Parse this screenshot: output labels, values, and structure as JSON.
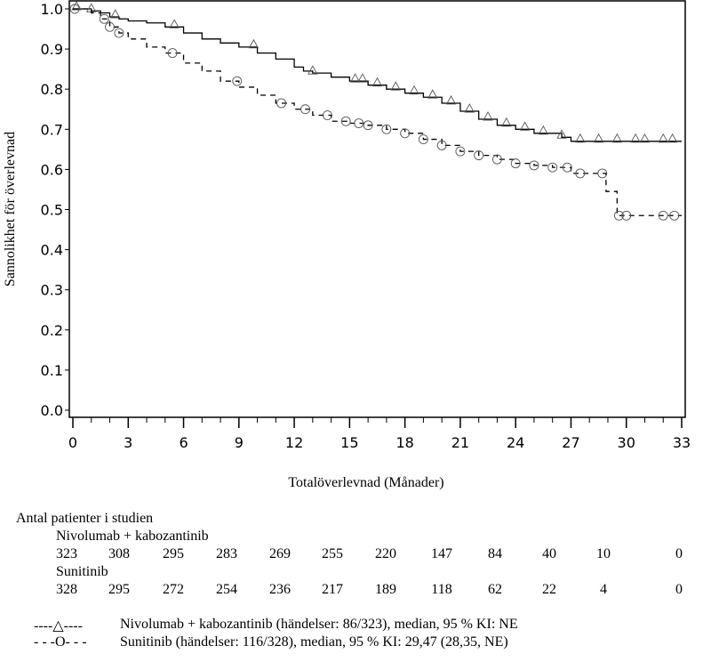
{
  "chart_data": {
    "type": "line",
    "subtype": "kaplan-meier",
    "title": "",
    "xlabel": "Totalöverlevnad (Månader)",
    "ylabel": "Sannolikhet för överlevnad",
    "xlim": [
      0,
      33
    ],
    "ylim": [
      0.0,
      1.0
    ],
    "xticks": [
      0,
      3,
      6,
      9,
      12,
      15,
      18,
      21,
      24,
      27,
      30,
      33
    ],
    "xtick_labels": [
      "0",
      "3",
      "6",
      "9",
      "12",
      "15",
      "18",
      "21",
      "24",
      "27",
      "30",
      "33"
    ],
    "yticks": [
      0.0,
      0.1,
      0.2,
      0.3,
      0.4,
      0.5,
      0.6,
      0.7,
      0.8,
      0.9,
      1.0
    ],
    "ytick_labels": [
      "0.0",
      "0.1",
      "0.2",
      "0.3",
      "0.4",
      "0.5",
      "0.6",
      "0.7",
      "0.8",
      "0.9",
      "1.0"
    ],
    "grid": false,
    "series": [
      {
        "name": "Nivolumab + kabozantinib",
        "line_style": "solid",
        "censor_marker": "triangle",
        "x": [
          0,
          1.0,
          1.5,
          2.0,
          2.5,
          3.0,
          4.0,
          5.0,
          6.0,
          7.0,
          8.0,
          9.0,
          10.0,
          11.0,
          12.0,
          12.5,
          13.0,
          14.0,
          15.0,
          16.0,
          17.0,
          18.0,
          19.0,
          20.0,
          21.0,
          22.0,
          23.0,
          24.0,
          25.0,
          26.5,
          27.0,
          33.0
        ],
        "y": [
          1.0,
          0.995,
          0.99,
          0.98,
          0.975,
          0.97,
          0.965,
          0.955,
          0.94,
          0.925,
          0.915,
          0.905,
          0.89,
          0.875,
          0.855,
          0.845,
          0.84,
          0.83,
          0.82,
          0.81,
          0.8,
          0.79,
          0.78,
          0.765,
          0.745,
          0.725,
          0.71,
          0.7,
          0.69,
          0.68,
          0.67,
          0.67
        ],
        "censored_x": [
          0.2,
          1.0,
          2.3,
          5.5,
          9.8,
          13.0,
          15.3,
          15.7,
          16.5,
          17.5,
          18.5,
          19.5,
          20.5,
          21.5,
          22.5,
          23.5,
          24.5,
          25.5,
          26.5,
          27.5,
          28.5,
          29.5,
          30.5,
          31.0,
          32.0,
          32.5
        ]
      },
      {
        "name": "Sunitinib",
        "line_style": "dashed",
        "censor_marker": "circle",
        "x": [
          0,
          1.0,
          1.5,
          2.0,
          2.5,
          3.0,
          4.0,
          5.0,
          6.0,
          7.0,
          8.0,
          9.0,
          10.0,
          11.0,
          12.0,
          13.0,
          14.0,
          15.0,
          16.0,
          17.0,
          18.0,
          19.0,
          20.0,
          21.0,
          22.0,
          23.0,
          24.0,
          25.0,
          26.0,
          27.0,
          28.3,
          28.9,
          29.5,
          33.0
        ],
        "y": [
          1.0,
          0.99,
          0.975,
          0.955,
          0.94,
          0.925,
          0.905,
          0.89,
          0.865,
          0.845,
          0.82,
          0.805,
          0.785,
          0.765,
          0.75,
          0.735,
          0.72,
          0.715,
          0.71,
          0.7,
          0.69,
          0.675,
          0.66,
          0.645,
          0.635,
          0.625,
          0.615,
          0.61,
          0.605,
          0.59,
          0.59,
          0.545,
          0.485,
          0.485
        ],
        "censored_x": [
          0.1,
          1.7,
          2.0,
          2.5,
          5.4,
          8.9,
          11.3,
          12.6,
          13.8,
          14.8,
          15.5,
          16.0,
          17.0,
          18.0,
          19.0,
          20.0,
          21.0,
          22.0,
          23.0,
          24.0,
          25.0,
          26.0,
          26.8,
          27.5,
          28.7,
          29.6,
          30.0,
          32.0,
          32.6
        ]
      }
    ],
    "legend": {
      "placement": "bottom",
      "entries": [
        {
          "symbol": "----△----",
          "text": "Nivolumab + kabozantinib (händelser: 86/323), median, 95 % KI: NE"
        },
        {
          "symbol": "- - -O- - -",
          "text": "Sunitinib (händelser: 116/328), median, 95 % KI: 29,47 (28,35, NE)"
        }
      ]
    },
    "risk_table": {
      "title": "Antal patienter i studien",
      "groups": [
        {
          "name": "Nivolumab + kabozantinib",
          "values": [
            "323",
            "308",
            "295",
            "283",
            "269",
            "255",
            "220",
            "147",
            "84",
            "40",
            "10",
            "0"
          ]
        },
        {
          "name": "Sunitinib",
          "values": [
            "328",
            "295",
            "272",
            "254",
            "236",
            "217",
            "189",
            "118",
            "62",
            "22",
            "4",
            "0"
          ]
        }
      ]
    }
  }
}
